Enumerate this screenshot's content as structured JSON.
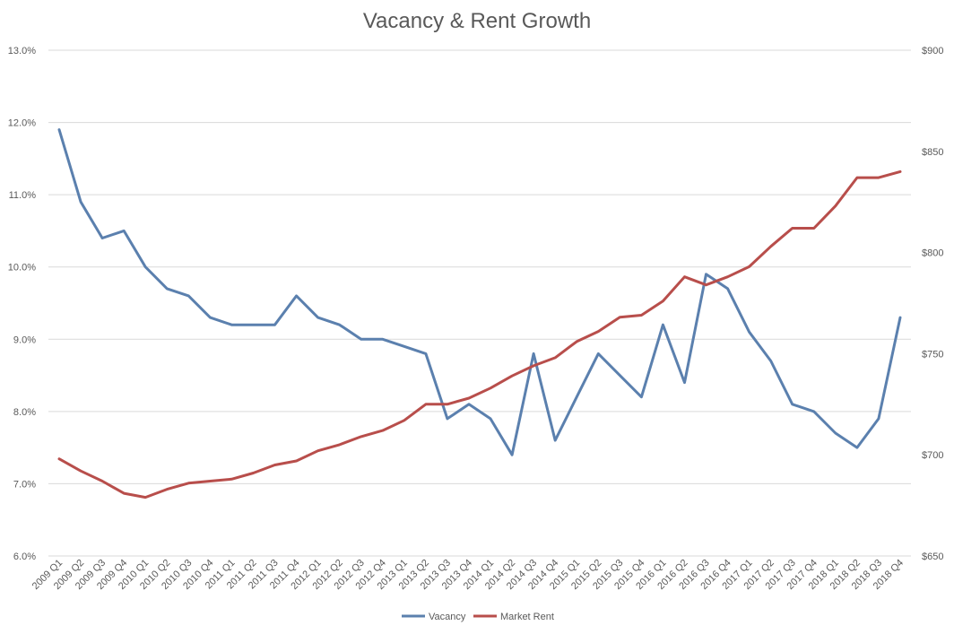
{
  "chart_data": {
    "type": "line",
    "title": "Vacancy & Rent Growth",
    "categories": [
      "2009 Q1",
      "2009 Q2",
      "2009 Q3",
      "2009 Q4",
      "2010 Q1",
      "2010 Q2",
      "2010 Q3",
      "2010 Q4",
      "2011 Q1",
      "2011 Q2",
      "2011 Q3",
      "2011 Q4",
      "2012 Q1",
      "2012 Q2",
      "2012 Q3",
      "2012 Q4",
      "2013 Q1",
      "2013 Q2",
      "2013 Q3",
      "2013 Q4",
      "2014 Q1",
      "2014 Q2",
      "2014 Q3",
      "2014 Q4",
      "2015 Q1",
      "2015 Q2",
      "2015 Q3",
      "2015 Q4",
      "2016 Q1",
      "2016 Q2",
      "2016 Q3",
      "2016 Q4",
      "2017 Q1",
      "2017 Q2",
      "2017 Q3",
      "2017 Q4",
      "2018 Q1",
      "2018 Q2",
      "2018 Q3",
      "2018 Q4"
    ],
    "y_left": {
      "ticks": [
        "6.0%",
        "7.0%",
        "8.0%",
        "9.0%",
        "10.0%",
        "11.0%",
        "12.0%",
        "13.0%"
      ],
      "min": 6.0,
      "max": 13.0
    },
    "y_right": {
      "ticks": [
        "$650",
        "$700",
        "$750",
        "$800",
        "$850",
        "$900"
      ],
      "min": 650,
      "max": 900
    },
    "series": [
      {
        "name": "Vacancy",
        "axis": "left",
        "color": "#5B80AE",
        "values": [
          11.9,
          10.9,
          10.4,
          10.5,
          10.0,
          9.7,
          9.6,
          9.3,
          9.2,
          9.2,
          9.2,
          9.6,
          9.3,
          9.2,
          9.0,
          9.0,
          8.9,
          8.8,
          7.9,
          8.1,
          7.9,
          7.4,
          8.8,
          7.6,
          8.2,
          8.8,
          8.5,
          8.2,
          9.2,
          8.4,
          9.9,
          9.7,
          9.1,
          8.7,
          8.1,
          8.0,
          7.7,
          7.5,
          7.9,
          9.3
        ]
      },
      {
        "name": "Market Rent",
        "axis": "right",
        "color": "#B84E4B",
        "values": [
          698,
          692,
          687,
          681,
          679,
          683,
          686,
          687,
          688,
          691,
          695,
          697,
          702,
          705,
          709,
          712,
          717,
          725,
          725,
          728,
          733,
          739,
          744,
          748,
          756,
          761,
          768,
          769,
          776,
          788,
          784,
          788,
          793,
          803,
          812,
          812,
          823,
          837,
          837,
          840
        ]
      }
    ],
    "legend_position": "bottom",
    "grid": true
  }
}
